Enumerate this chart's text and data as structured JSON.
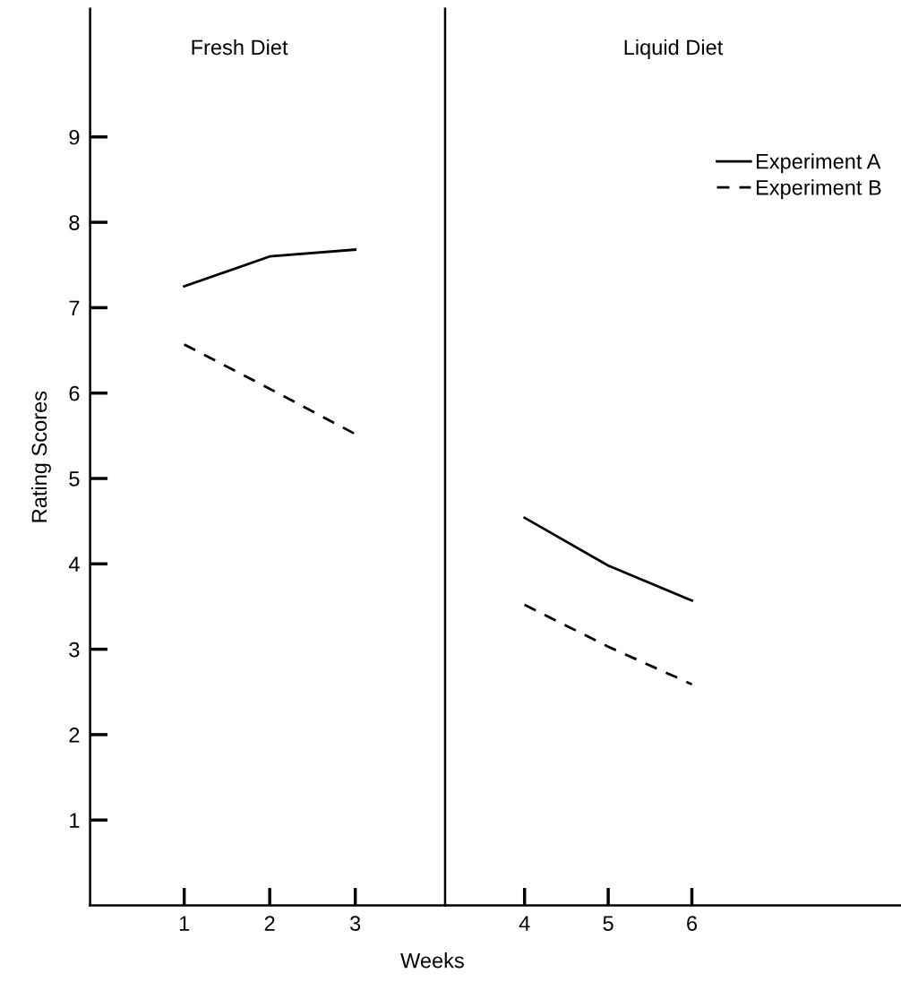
{
  "chart_data": [
    {
      "type": "line",
      "title": "Fresh Diet",
      "xlabel": "Weeks",
      "ylabel": "Rating Scores",
      "x": [
        1,
        2,
        3
      ],
      "xlim": [
        -0.1,
        4.05
      ],
      "xticks": [
        1,
        2,
        3
      ],
      "ylim": [
        0,
        10.5
      ],
      "yticks": [
        1,
        2,
        3,
        4,
        5,
        6,
        7,
        8,
        9
      ],
      "series": [
        {
          "color": "#000000",
          "line_style": "solid",
          "values": [
            7.25,
            7.6,
            7.68
          ]
        },
        {
          "color": "#000000",
          "line_style": "dashed",
          "values": [
            6.57,
            6.05,
            5.52
          ]
        }
      ],
      "grid": false,
      "legend": false,
      "marker": "none"
    },
    {
      "type": "line",
      "title": "Liquid Diet",
      "x": [
        4,
        5,
        6
      ],
      "xlim": [
        3.05,
        8.5
      ],
      "xticks": [
        4,
        5,
        6
      ],
      "ylim": [
        0,
        10.5
      ],
      "tick_labels": "x",
      "series": [
        {
          "name": "Experiment A",
          "color": "#000000",
          "line_style": "solid",
          "values": [
            4.54,
            3.98,
            3.57
          ]
        },
        {
          "name": "Experiment B",
          "color": "#000000",
          "line_style": "dashed",
          "values": [
            3.52,
            3.03,
            2.59
          ]
        }
      ],
      "grid": false,
      "legend": "top right",
      "marker": "none"
    }
  ]
}
